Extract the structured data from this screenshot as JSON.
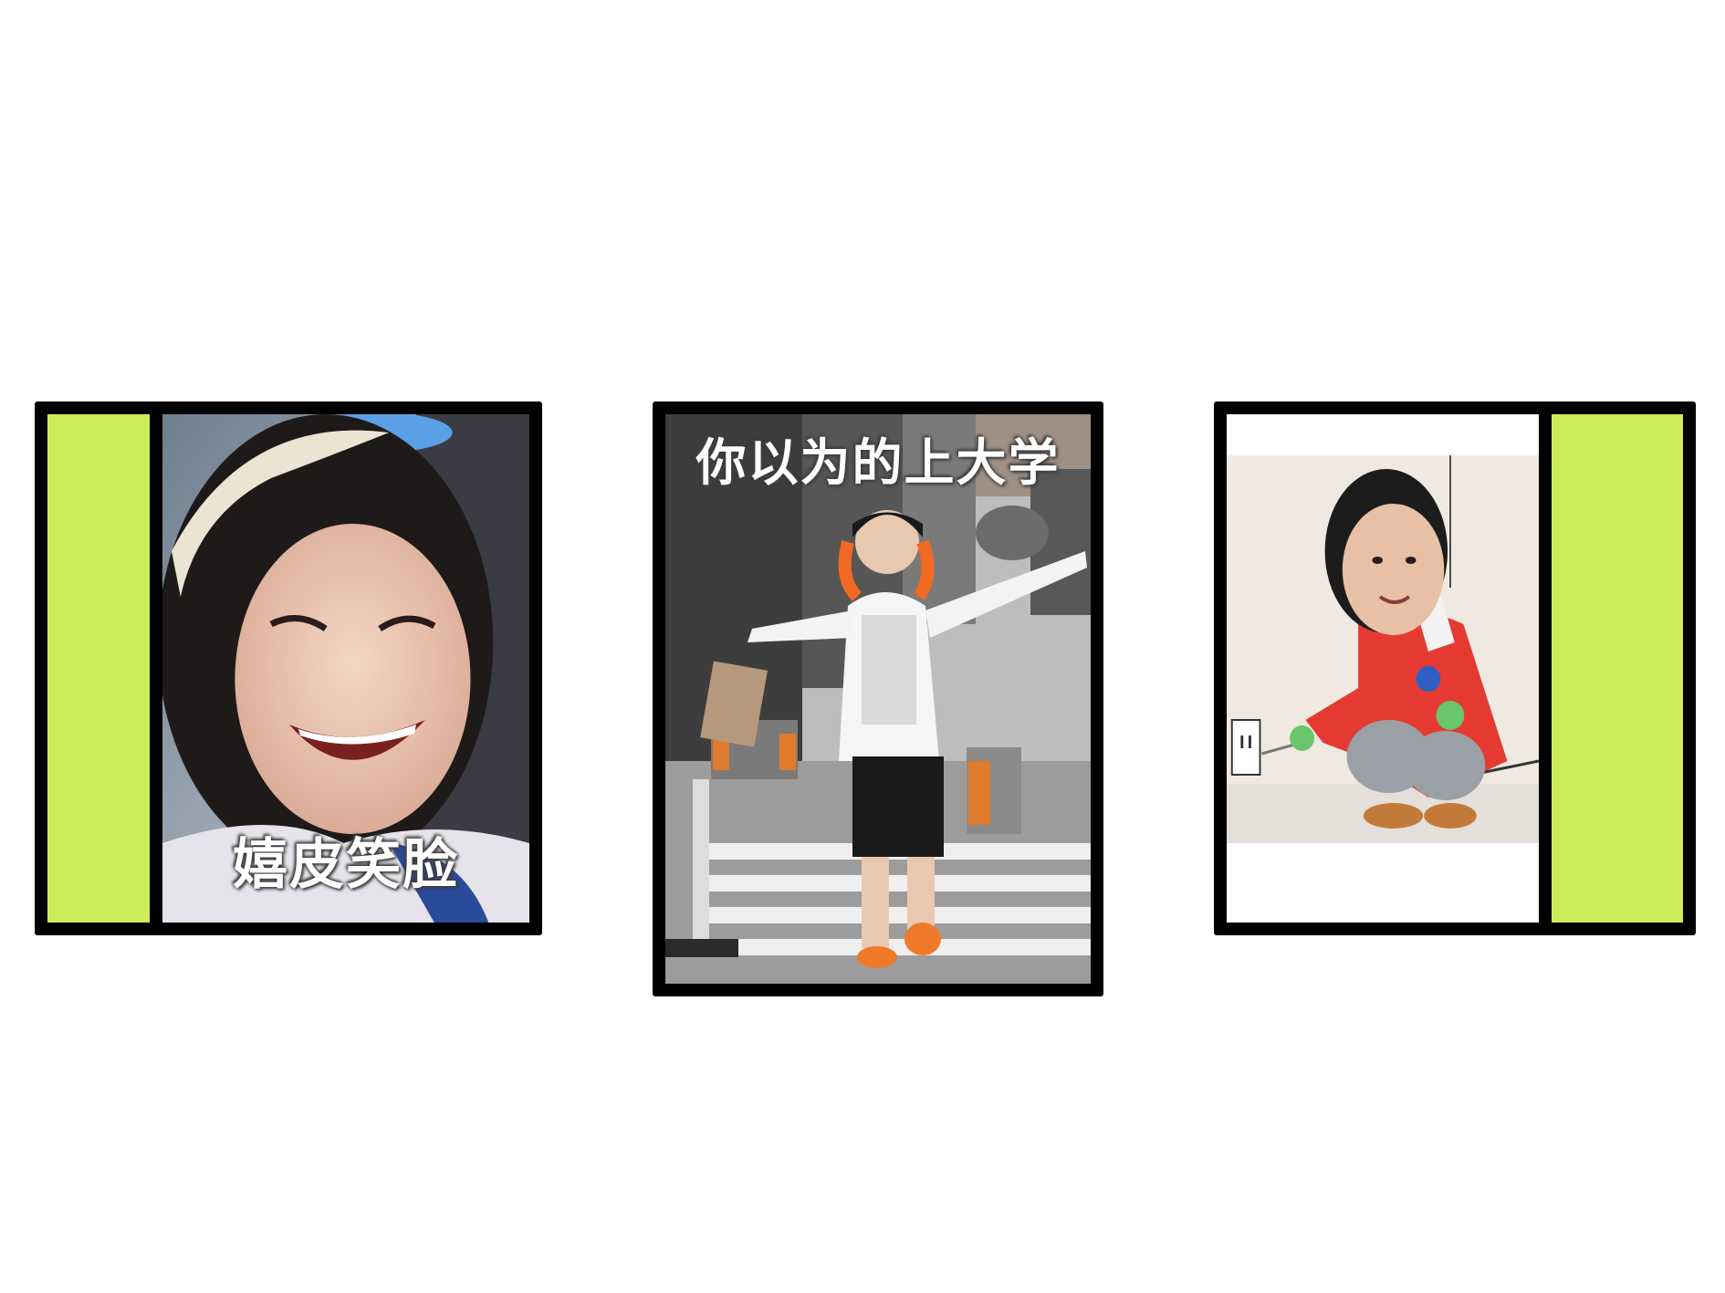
{
  "colors": {
    "accent": "#CDEC5A",
    "frame": "#000000",
    "background": "#FFFFFF"
  },
  "panels": [
    {
      "caption": "嬉皮笑脸"
    },
    {
      "caption": "你以为的上大学"
    },
    {
      "caption": ""
    }
  ]
}
